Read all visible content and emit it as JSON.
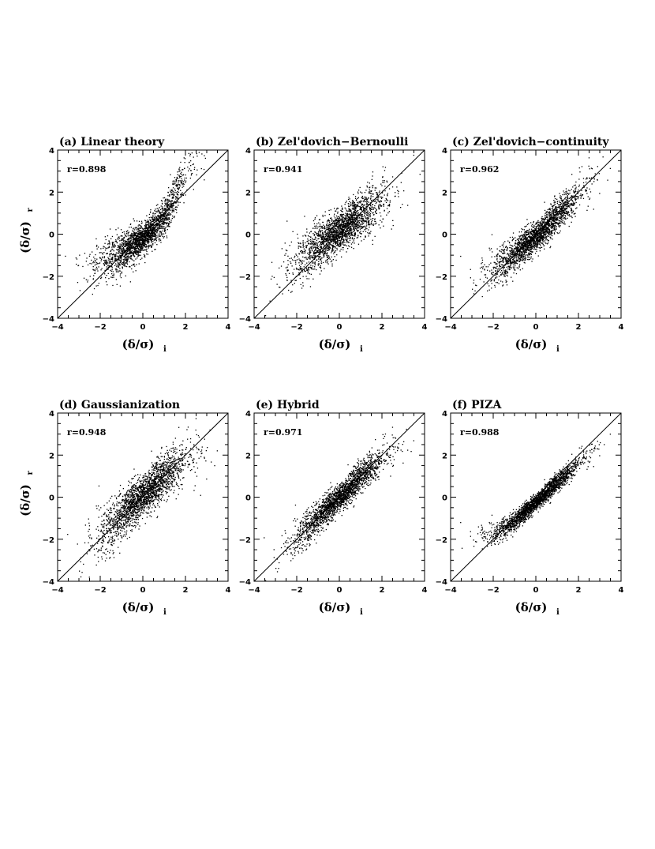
{
  "chart_data": [
    {
      "type": "scatter",
      "title": "(a) Linear theory",
      "annotation": "r=0.898",
      "xlabel": "(δ/σ)",
      "xlabel_sub": "i",
      "ylabel": "(δ/σ)",
      "ylabel_sub": "r",
      "xlim": [
        -4,
        4
      ],
      "ylim": [
        -4,
        4
      ],
      "xticks": [
        "−4",
        "−2",
        "0",
        "2",
        "4"
      ],
      "yticks": [
        "−4",
        "−2",
        "0",
        "2",
        "4"
      ],
      "reference_line": "y = x",
      "points": [
        [
          -3.6,
          -1.8
        ],
        [
          -3,
          -1.6
        ],
        [
          -2,
          -1.3
        ],
        [
          -1,
          -0.9
        ],
        [
          0,
          -0.2
        ],
        [
          1,
          0.8
        ],
        [
          1.5,
          1.8
        ],
        [
          2,
          3
        ],
        [
          2.5,
          3.8
        ]
      ]
    },
    {
      "type": "scatter",
      "title": "(b) Zel'dovich−Bernoulli",
      "annotation": "r=0.941",
      "xlabel": "(δ/σ)",
      "xlabel_sub": "i",
      "xlim": [
        -4,
        4
      ],
      "ylim": [
        -4,
        4
      ],
      "xticks": [
        "−4",
        "−2",
        "0",
        "2",
        "4"
      ],
      "yticks": [
        "−4",
        "−2",
        "0",
        "2",
        "4"
      ],
      "reference_line": "y = x",
      "points": [
        [
          -3.5,
          -2.6
        ],
        [
          -3,
          -2.1
        ],
        [
          -2,
          -1.3
        ],
        [
          -1,
          -0.5
        ],
        [
          0,
          0.2
        ],
        [
          1,
          0.9
        ],
        [
          2,
          1.6
        ],
        [
          3,
          2.3
        ],
        [
          3.5,
          2.8
        ]
      ]
    },
    {
      "type": "scatter",
      "title": "(c) Zel'dovich−continuity",
      "annotation": "r=0.962",
      "xlabel": "(δ/σ)",
      "xlabel_sub": "i",
      "xlim": [
        -4,
        4
      ],
      "ylim": [
        -4,
        4
      ],
      "xticks": [
        "−4",
        "−2",
        "0",
        "2",
        "4"
      ],
      "yticks": [
        "−4",
        "−2",
        "0",
        "2",
        "4"
      ],
      "reference_line": "y = x",
      "points": [
        [
          -3.3,
          -2.3
        ],
        [
          -3,
          -2.1
        ],
        [
          -2,
          -1.7
        ],
        [
          -1,
          -0.9
        ],
        [
          0,
          -0.1
        ],
        [
          1,
          0.9
        ],
        [
          2,
          2
        ],
        [
          3,
          3.2
        ],
        [
          3.6,
          3.9
        ]
      ]
    },
    {
      "type": "scatter",
      "title": "(d) Gaussianization",
      "annotation": "r=0.948",
      "xlabel": "(δ/σ)",
      "xlabel_sub": "i",
      "ylabel": "(δ/σ)",
      "ylabel_sub": "r",
      "xlim": [
        -4,
        4
      ],
      "ylim": [
        -4,
        4
      ],
      "xticks": [
        "−4",
        "−2",
        "0",
        "2",
        "4"
      ],
      "yticks": [
        "−4",
        "−2",
        "0",
        "2",
        "4"
      ],
      "reference_line": "y = x",
      "points": [
        [
          -3.6,
          -3.6
        ],
        [
          -3,
          -2.8
        ],
        [
          -2,
          -1.8
        ],
        [
          -1,
          -0.8
        ],
        [
          0,
          0.1
        ],
        [
          1,
          1
        ],
        [
          2,
          1.9
        ],
        [
          3,
          2.6
        ],
        [
          3.5,
          3.1
        ]
      ]
    },
    {
      "type": "scatter",
      "title": "(e) Hybrid",
      "annotation": "r=0.971",
      "xlabel": "(δ/σ)",
      "xlabel_sub": "i",
      "xlim": [
        -4,
        4
      ],
      "ylim": [
        -4,
        4
      ],
      "xticks": [
        "−4",
        "−2",
        "0",
        "2",
        "4"
      ],
      "yticks": [
        "−4",
        "−2",
        "0",
        "2",
        "4"
      ],
      "reference_line": "y = x",
      "points": [
        [
          -3.4,
          -3.1
        ],
        [
          -3,
          -2.9
        ],
        [
          -2,
          -1.9
        ],
        [
          -1,
          -0.9
        ],
        [
          0,
          0
        ],
        [
          1,
          1
        ],
        [
          2,
          1.9
        ],
        [
          3,
          2.8
        ],
        [
          3.5,
          3.3
        ]
      ]
    },
    {
      "type": "scatter",
      "title": "(f) PIZA",
      "annotation": "r=0.988",
      "xlabel": "(δ/σ)",
      "xlabel_sub": "i",
      "xlim": [
        -4,
        4
      ],
      "ylim": [
        -4,
        4
      ],
      "xticks": [
        "−4",
        "−2",
        "0",
        "2",
        "4"
      ],
      "yticks": [
        "−4",
        "−2",
        "0",
        "2",
        "4"
      ],
      "reference_line": "y = x",
      "points": [
        [
          -3.2,
          -1.9
        ],
        [
          -3,
          -1.9
        ],
        [
          -2,
          -1.8
        ],
        [
          -1,
          -1.1
        ],
        [
          0,
          -0.2
        ],
        [
          1,
          0.7
        ],
        [
          2,
          1.7
        ],
        [
          3,
          2.7
        ],
        [
          3.5,
          3.4
        ]
      ]
    }
  ]
}
